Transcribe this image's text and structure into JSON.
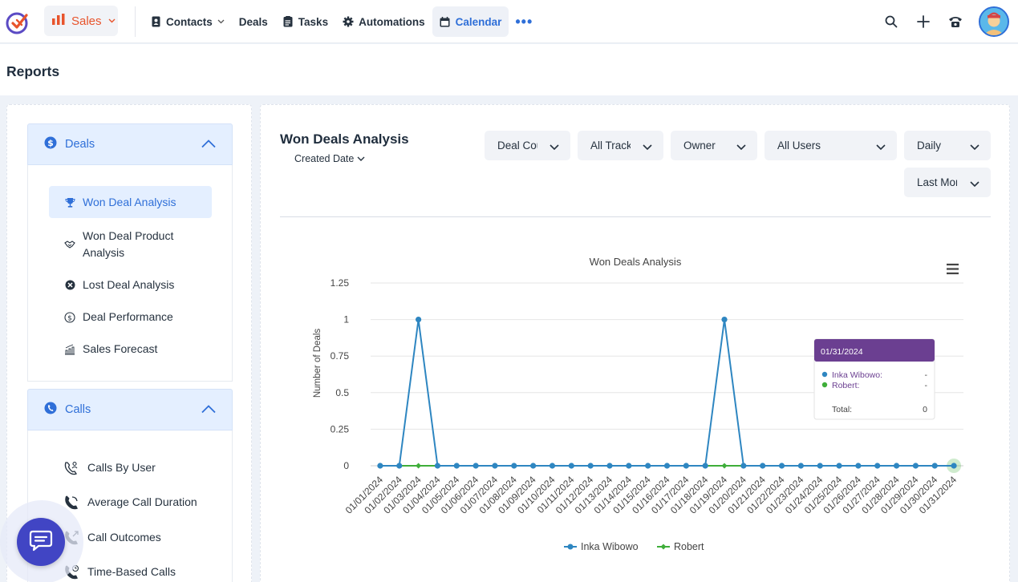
{
  "topbar": {
    "module_label": "Sales",
    "nav": [
      {
        "label": "Contacts",
        "icon": "contact-book-icon",
        "has_caret": true
      },
      {
        "label": "Deals",
        "icon": "",
        "has_caret": false
      },
      {
        "label": "Tasks",
        "icon": "tasks-icon",
        "has_caret": false
      },
      {
        "label": "Automations",
        "icon": "gear-icon",
        "has_caret": false
      },
      {
        "label": "Calendar",
        "icon": "calendar-icon",
        "has_caret": false,
        "active": true
      }
    ],
    "more_label": "•••"
  },
  "page": {
    "title": "Reports"
  },
  "sidebar": {
    "deals_section": {
      "label": "Deals",
      "items": [
        {
          "label": "Won Deal Analysis",
          "icon": "trophy-icon",
          "active": true
        },
        {
          "label": "Won Deal Product Analysis",
          "icon": "handshake-icon"
        },
        {
          "label": "Lost Deal Analysis",
          "icon": "lost-deal-icon"
        },
        {
          "label": "Deal Performance",
          "icon": "dollar-coin-icon"
        },
        {
          "label": "Sales Forecast",
          "icon": "forecast-chart-icon"
        }
      ]
    },
    "calls_section": {
      "label": "Calls",
      "items": [
        {
          "label": "Calls By User",
          "icon": "phone-user-icon"
        },
        {
          "label": "Average Call Duration",
          "icon": "phone-icon"
        },
        {
          "label": "Call Outcomes",
          "icon": "phone-outgoing-icon"
        },
        {
          "label": "Time-Based Calls",
          "icon": "phone-clock-icon"
        }
      ]
    }
  },
  "main": {
    "title": "Won Deals Analysis",
    "date_selector": "Created Date",
    "filters": {
      "metric": "Deal Count",
      "track": "All Tracks",
      "group_by": "Owner",
      "users": "All Users",
      "interval": "Daily",
      "period": "Last Month"
    },
    "menu_icon": "hamburger-menu-icon"
  },
  "chart_data": {
    "type": "line",
    "title": "Won Deals Analysis",
    "xlabel": "",
    "ylabel": "Number of Deals",
    "ylim": [
      0,
      1.25
    ],
    "yticks": [
      "0",
      "0.25",
      "0.5",
      "0.75",
      "1",
      "1.25"
    ],
    "yticks_values": [
      0,
      0.25,
      0.5,
      0.75,
      1,
      1.25
    ],
    "categories": [
      "01/01/2024",
      "01/02/2024",
      "01/03/2024",
      "01/04/2024",
      "01/05/2024",
      "01/06/2024",
      "01/07/2024",
      "01/08/2024",
      "01/09/2024",
      "01/10/2024",
      "01/11/2024",
      "01/12/2024",
      "01/13/2024",
      "01/14/2024",
      "01/15/2024",
      "01/16/2024",
      "01/17/2024",
      "01/18/2024",
      "01/19/2024",
      "01/20/2024",
      "01/21/2024",
      "01/22/2024",
      "01/23/2024",
      "01/24/2024",
      "01/25/2024",
      "01/26/2024",
      "01/27/2024",
      "01/28/2024",
      "01/29/2024",
      "01/30/2024",
      "01/31/2024"
    ],
    "series": [
      {
        "name": "Inka Wibowo",
        "color": "#2e86c1",
        "values": [
          0,
          0,
          1,
          0,
          0,
          0,
          0,
          0,
          0,
          0,
          0,
          0,
          0,
          0,
          0,
          0,
          0,
          0,
          1,
          0,
          0,
          0,
          0,
          0,
          0,
          0,
          0,
          0,
          0,
          0,
          0
        ]
      },
      {
        "name": "Robert",
        "color": "#3fae3a",
        "values": [
          0,
          0,
          0,
          0,
          0,
          0,
          0,
          0,
          0,
          0,
          0,
          0,
          0,
          0,
          0,
          0,
          0,
          0,
          0,
          0,
          0,
          0,
          0,
          0,
          0,
          0,
          0,
          0,
          0,
          0,
          0
        ]
      }
    ],
    "legend_position": "bottom",
    "grid": true,
    "tooltip": {
      "header": "01/31/2024",
      "header_color": "#6b3f91",
      "rows": [
        {
          "name": "Inka Wibowo:",
          "value": "-",
          "color": "#2e86c1"
        },
        {
          "name": "Robert:",
          "value": "-",
          "color": "#3fae3a"
        }
      ],
      "total_label": "Total:",
      "total_value": "0"
    }
  },
  "colors": {
    "accent": "#2f6fd8",
    "brand": "#e8542c",
    "chat": "#4145c4"
  }
}
